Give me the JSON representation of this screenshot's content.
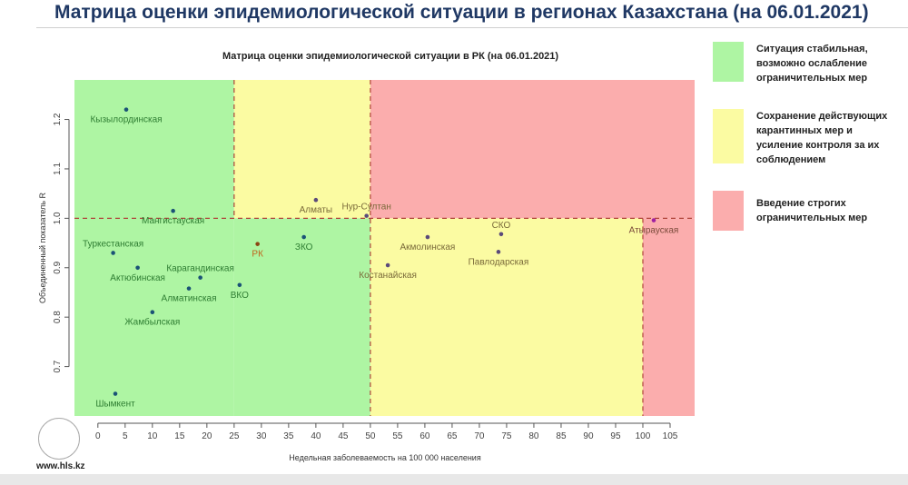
{
  "header": {
    "title": "Матрица оценки эпидемиологической ситуации в регионах Казахстана (на 06.01.2021)"
  },
  "footer": {
    "site": "www.hls.kz"
  },
  "legend": [
    {
      "text": "Ситуация стабильная, возможно ослабление ограничительных мер",
      "color": "#aef5a3"
    },
    {
      "text": "Сохранение действующих карантинных мер и усиление контроля за их соблюдением",
      "color": "#fbfba2"
    },
    {
      "text": "Введение строгих ограничительных мер",
      "color": "#fbadad"
    }
  ],
  "chart_data": {
    "type": "scatter",
    "title": "Матрица оценки эпидемиологической ситуации в РК (на 06.01.2021)",
    "xlabel": "Недельная заболеваемость на 100 000 населения",
    "ylabel": "Объединенный показатель R",
    "xlim": [
      -4.3,
      109.5
    ],
    "ylim": [
      0.6,
      1.28
    ],
    "xticks": [
      "0",
      "5",
      "10",
      "15",
      "20",
      "25",
      "30",
      "35",
      "40",
      "45",
      "50",
      "55",
      "60",
      "65",
      "70",
      "75",
      "80",
      "85",
      "90",
      "95",
      "100",
      "105"
    ],
    "yticks": [
      "0.7",
      "0.8",
      "0.9",
      "1.0",
      "1.1",
      "1.2"
    ],
    "thresholds": {
      "x": [
        25,
        50,
        100
      ],
      "y": 1.0
    },
    "points": [
      {
        "label": "Кызылординская",
        "x": 5.2,
        "y": 1.22,
        "color": "#1a5276",
        "lc": "#2e7d32",
        "pos": "below"
      },
      {
        "label": "Мангистауская",
        "x": 13.8,
        "y": 1.015,
        "color": "#1a5276",
        "lc": "#2e7d32",
        "pos": "below"
      },
      {
        "label": "Туркестанская",
        "x": 2.8,
        "y": 0.93,
        "color": "#1a5276",
        "lc": "#2e7d32",
        "pos": "above"
      },
      {
        "label": "Актюбинская",
        "x": 7.3,
        "y": 0.9,
        "color": "#1a5276",
        "lc": "#2e7d32",
        "pos": "below"
      },
      {
        "label": "Карагандинская",
        "x": 18.8,
        "y": 0.88,
        "color": "#1a5276",
        "lc": "#2e7d32",
        "pos": "above"
      },
      {
        "label": "Алматинская",
        "x": 16.7,
        "y": 0.858,
        "color": "#1a5276",
        "lc": "#2e7d32",
        "pos": "below"
      },
      {
        "label": "ВКО",
        "x": 26,
        "y": 0.865,
        "color": "#1a5276",
        "lc": "#2e7d32",
        "pos": "below"
      },
      {
        "label": "Жамбылская",
        "x": 10,
        "y": 0.81,
        "color": "#1a5276",
        "lc": "#2e7d32",
        "pos": "below"
      },
      {
        "label": "Шымкент",
        "x": 3.2,
        "y": 0.645,
        "color": "#1a5276",
        "lc": "#2e7d32",
        "pos": "below"
      },
      {
        "label": "РК",
        "x": 29.3,
        "y": 0.948,
        "color": "#8b4513",
        "lc": "#c0641c",
        "pos": "below"
      },
      {
        "label": "ЗКО",
        "x": 37.8,
        "y": 0.962,
        "color": "#1a5276",
        "lc": "#2e7d32",
        "pos": "below"
      },
      {
        "label": "Алматы",
        "x": 40,
        "y": 1.037,
        "color": "#5b4a7a",
        "lc": "#7a6a3a",
        "pos": "below"
      },
      {
        "label": "Нур-Султан",
        "x": 49.3,
        "y": 1.005,
        "color": "#5b4a7a",
        "lc": "#7a6a3a",
        "pos": "above"
      },
      {
        "label": "Костанайская",
        "x": 53.2,
        "y": 0.905,
        "color": "#5b4a7a",
        "lc": "#7a6a3a",
        "pos": "below"
      },
      {
        "label": "Акмолинская",
        "x": 60.5,
        "y": 0.962,
        "color": "#5b4a7a",
        "lc": "#7a6a3a",
        "pos": "below"
      },
      {
        "label": "СКО",
        "x": 74,
        "y": 0.968,
        "color": "#5b4a7a",
        "lc": "#7a6a3a",
        "pos": "above"
      },
      {
        "label": "Павлодарская",
        "x": 73.5,
        "y": 0.932,
        "color": "#5b4a7a",
        "lc": "#7a6a3a",
        "pos": "below"
      },
      {
        "label": "Атырауская",
        "x": 102,
        "y": 0.996,
        "color": "#a020a0",
        "lc": "#7a4a3a",
        "pos": "below"
      }
    ]
  }
}
